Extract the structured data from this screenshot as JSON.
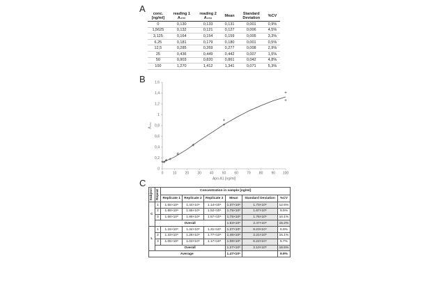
{
  "panel_labels": [
    "A",
    "B",
    "C"
  ],
  "tableA": {
    "header": [
      [
        "conc.",
        "[ng/ml]"
      ],
      [
        "reading 1",
        "A₄₅₀"
      ],
      [
        "reading 2",
        "A₄₅₀"
      ],
      [
        "Mean"
      ],
      [
        "Standard",
        "Deviation"
      ],
      [
        "%CV"
      ]
    ],
    "rows": [
      [
        "0",
        "0,130",
        "0,133",
        "0,131",
        "0,001",
        "0,9%"
      ],
      [
        "1,5625",
        "0,132",
        "0,121",
        "0,127",
        "0,006",
        "4,5%"
      ],
      [
        "3,125",
        "0,164",
        "0,154",
        "0,159",
        "0,005",
        "3,3%"
      ],
      [
        "6,25",
        "0,181",
        "0,179",
        "0,180",
        "0,001",
        "0,5%"
      ],
      [
        "12,5",
        "0,285",
        "0,269",
        "0,277",
        "0,008",
        "2,9%"
      ],
      [
        "25",
        "0,436",
        "0,449",
        "0,442",
        "0,007",
        "1,5%"
      ],
      [
        "50",
        "0,903",
        "0,820",
        "0,861",
        "0,042",
        "4,8%"
      ],
      [
        "100",
        "1,270",
        "1,412",
        "1,341",
        "0,071",
        "5,3%"
      ]
    ]
  },
  "chart_data": {
    "type": "scatter",
    "x_label": "Apo-A1 [ng/ml]",
    "y_label": "A₄₅₀",
    "xlim": [
      0,
      100
    ],
    "xticks": [
      0,
      10,
      20,
      30,
      40,
      50,
      60,
      70,
      80,
      90,
      100
    ],
    "ylim": [
      0,
      1.6
    ],
    "yticks": [
      0,
      {
        "value": 0.2,
        "label": "0,2"
      },
      {
        "value": 0.4,
        "label": "0,4"
      },
      {
        "value": 0.6,
        "label": "0,6"
      },
      {
        "value": 0.8,
        "label": "0,8"
      },
      {
        "value": 1,
        "label": "1"
      },
      {
        "value": 1.2,
        "label": "1,2"
      },
      {
        "value": 1.4,
        "label": "1,4"
      },
      {
        "value": 1.6,
        "label": "1,6"
      }
    ],
    "series": [
      {
        "color": "#555555",
        "marker": "cross",
        "x": [
          0,
          1.5625,
          3.125,
          6.25,
          12.5,
          25,
          50,
          100
        ],
        "values": [
          0.13,
          0.132,
          0.164,
          0.181,
          0.285,
          0.436,
          0.903,
          1.27
        ]
      },
      {
        "color": "#555555",
        "marker": "cross",
        "x": [
          0,
          1.5625,
          3.125,
          6.25,
          12.5,
          25,
          50,
          100
        ],
        "values": [
          0.133,
          0.121,
          0.154,
          0.179,
          0.269,
          0.449,
          0.82,
          1.412
        ]
      },
      {
        "color": "#444444",
        "marker": "line",
        "x": [
          0,
          10,
          20,
          30,
          40,
          50,
          60,
          70,
          80,
          90,
          100
        ],
        "values": [
          0.12,
          0.22,
          0.36,
          0.52,
          0.67,
          0.82,
          0.95,
          1.07,
          1.17,
          1.26,
          1.33
        ]
      }
    ]
  },
  "tableC": {
    "subject": "Subject",
    "repeat": "Repeat",
    "group": "Concentration in sample [ng/ml]",
    "columns": [
      "Replicate 1",
      "Replicate 2",
      "Replicate 3",
      "Mean",
      "Standard Deviation",
      "%CV"
    ],
    "groups": [
      {
        "subject": "C",
        "rows": [
          {
            "repeat": "1",
            "cells": [
              "1.55×10⁶",
              "1.44×10⁶",
              "1.14×10⁶",
              "1.37×10⁶",
              "1.73×10⁵",
              "12.6%"
            ]
          },
          {
            "repeat": "2",
            "cells": [
              "1.88×10⁶",
              "1.86×10⁶",
              "1.52×10⁶",
              "1.75×10⁶",
              "1.67×10⁵",
              "9.5%"
            ]
          },
          {
            "repeat": "3",
            "cells": [
              "1.68×10⁶",
              "1.99×10⁶",
              "1.57×10⁶",
              "1.75×10⁶",
              "1.76×10⁵",
              "10.1%"
            ]
          }
        ],
        "overall": {
          "label": "Overall",
          "cells": [
            "1.63×10⁶",
            "2.47×10⁵",
            "15.2%"
          ]
        }
      },
      {
        "subject": "L",
        "rows": [
          {
            "repeat": "1",
            "cells": [
              "1.15×10⁶",
              "1.34×10⁶",
              "1.31×10⁶",
              "1.27×10⁶",
              "8.23×10⁴",
              "6.5%"
            ]
          },
          {
            "repeat": "2",
            "cells": [
              "1.33×10⁶",
              "1.28×10⁶",
              "1.77×10⁶",
              "1.46×10⁶",
              "2.21×10⁵",
              "15.1%"
            ]
          },
          {
            "repeat": "3",
            "cells": [
              "1.05×10⁶",
              "1.03×10⁶",
              "1.17×10⁶",
              "1.08×10⁶",
              "6.22×10⁴",
              "5.7%"
            ]
          }
        ],
        "overall": {
          "label": "Overall",
          "cells": [
            "1.27×10⁶",
            "2.10×10⁵",
            "16.5%"
          ]
        }
      }
    ],
    "average": {
      "label": "Average",
      "mean": "1.47×10⁶",
      "cv": "9.9%"
    }
  }
}
